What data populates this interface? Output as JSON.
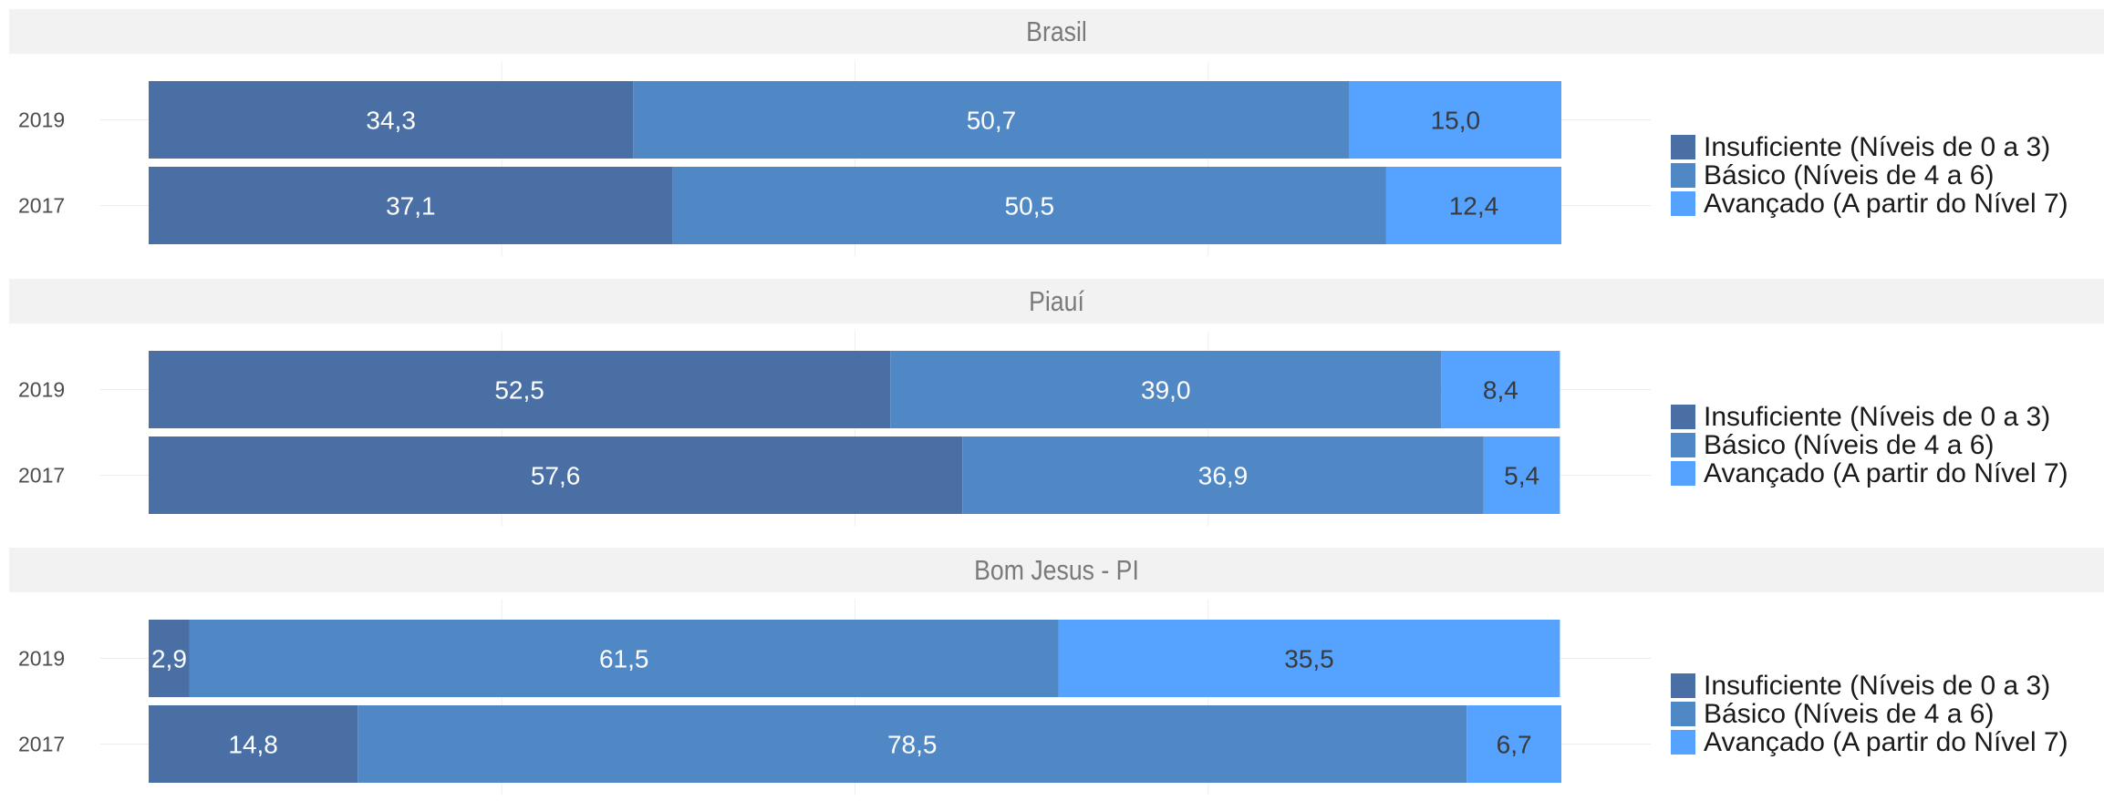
{
  "colors": {
    "insuficiente": "#4a6fa5",
    "basico": "#5088c5",
    "avancado": "#55a2ff",
    "label_dark_bg": "#ffffff",
    "label_light_bg": "#3a3a3a"
  },
  "legend": {
    "items": [
      {
        "key": "insuficiente",
        "label": "Insuficiente (Níveis de 0 a 3)"
      },
      {
        "key": "basico",
        "label": "Básico (Níveis de 4 a 6)"
      },
      {
        "key": "avancado",
        "label": "Avançado (A partir do Nível 7)"
      }
    ]
  },
  "chart_data": [
    {
      "type": "bar",
      "orientation": "horizontal",
      "stacked": true,
      "title": "Brasil",
      "categories": [
        "2019",
        "2017"
      ],
      "xlim": [
        0,
        100
      ],
      "grid": true,
      "legend_position": "right",
      "series": [
        {
          "name": "Insuficiente (Níveis de 0 a 3)",
          "values": [
            34.3,
            37.1
          ],
          "labels": [
            "34,3",
            "37,1"
          ]
        },
        {
          "name": "Básico (Níveis de 4 a 6)",
          "values": [
            50.7,
            50.5
          ],
          "labels": [
            "50,7",
            "50,5"
          ]
        },
        {
          "name": "Avançado (A partir do Nível 7)",
          "values": [
            15.0,
            12.4
          ],
          "labels": [
            "15,0",
            "12,4"
          ]
        }
      ]
    },
    {
      "type": "bar",
      "orientation": "horizontal",
      "stacked": true,
      "title": "Piauí",
      "categories": [
        "2019",
        "2017"
      ],
      "xlim": [
        0,
        100
      ],
      "grid": true,
      "legend_position": "right",
      "series": [
        {
          "name": "Insuficiente (Níveis de 0 a 3)",
          "values": [
            52.5,
            57.6
          ],
          "labels": [
            "52,5",
            "57,6"
          ]
        },
        {
          "name": "Básico (Níveis de 4 a 6)",
          "values": [
            39.0,
            36.9
          ],
          "labels": [
            "39,0",
            "36,9"
          ]
        },
        {
          "name": "Avançado (A partir do Nível 7)",
          "values": [
            8.4,
            5.4
          ],
          "labels": [
            "8,4",
            "5,4"
          ]
        }
      ]
    },
    {
      "type": "bar",
      "orientation": "horizontal",
      "stacked": true,
      "title": "Bom Jesus - PI",
      "categories": [
        "2019",
        "2017"
      ],
      "xlim": [
        0,
        100
      ],
      "grid": true,
      "legend_position": "right",
      "series": [
        {
          "name": "Insuficiente (Níveis de 0 a 3)",
          "values": [
            2.9,
            14.8
          ],
          "labels": [
            "2,9",
            "14,8"
          ]
        },
        {
          "name": "Básico (Níveis de 4 a 6)",
          "values": [
            61.5,
            78.5
          ],
          "labels": [
            "61,5",
            "78,5"
          ]
        },
        {
          "name": "Avançado (A partir do Nível 7)",
          "values": [
            35.5,
            6.7
          ],
          "labels": [
            "35,5",
            "6,7"
          ]
        }
      ]
    }
  ]
}
